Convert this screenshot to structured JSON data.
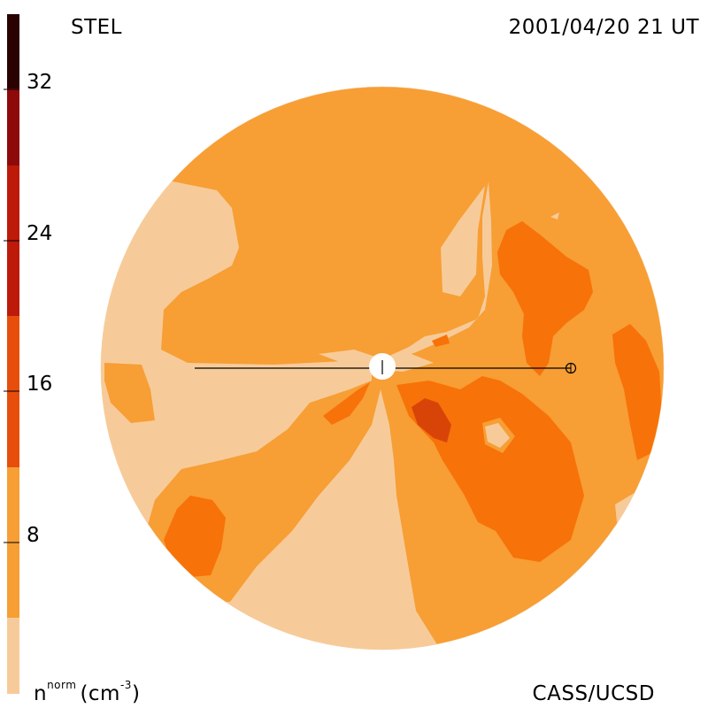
{
  "header": {
    "station": "STEL",
    "datetime": "2001/04/20 21 UT"
  },
  "footer": {
    "credit": "CASS/UCSD",
    "units_n": "n",
    "units_sup": "norm",
    "units_rest": "(cm",
    "units_exp": "-3",
    "units_close": ")"
  },
  "colorbar": {
    "tick_labels": [
      "32",
      "24",
      "16",
      "8"
    ],
    "tick_values": [
      32,
      24,
      16,
      8
    ],
    "range": [
      0,
      36
    ],
    "level_colors": [
      "#f7cb99",
      "#f79e35",
      "#f77208",
      "#e74e0c",
      "#bd1a0a",
      "#8e0a0a",
      "#5c0606",
      "#2a0202"
    ]
  },
  "colors": {
    "background": "#ffffff",
    "disk_outline": "#000000",
    "earth_line": "#000000"
  }
}
